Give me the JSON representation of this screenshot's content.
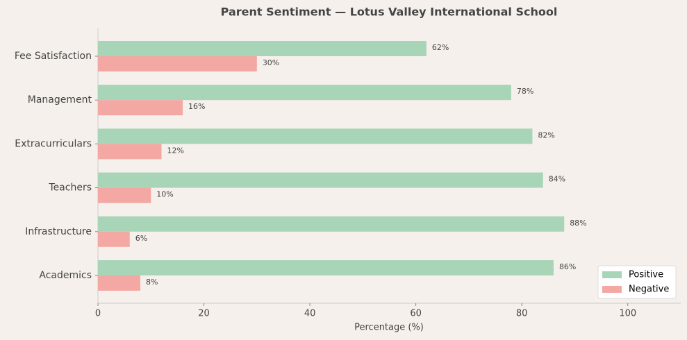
{
  "chart_data": {
    "type": "hbar",
    "title": "Parent Sentiment — Lotus Valley International School",
    "x_label": "Percentage (%)",
    "categories": [
      "Fee Satisfaction",
      "Management",
      "Extracurriculars",
      "Teachers",
      "Infrastructure",
      "Academics"
    ],
    "series": [
      {
        "name": "Positive",
        "color": "#a8d5b8",
        "values": [
          62,
          78,
          82,
          84,
          88,
          86
        ],
        "value_labels": [
          "62%",
          "78%",
          "82%",
          "84%",
          "88%",
          "86%"
        ]
      },
      {
        "name": "Negative",
        "color": "#f4a8a4",
        "values": [
          30,
          16,
          12,
          10,
          6,
          8
        ],
        "value_labels": [
          "30%",
          "16%",
          "12%",
          "10%",
          "6%",
          "8%"
        ]
      }
    ],
    "xlim": [
      0,
      110
    ],
    "xticks": [
      0,
      20,
      40,
      60,
      80,
      100
    ],
    "legend": "lower right"
  }
}
